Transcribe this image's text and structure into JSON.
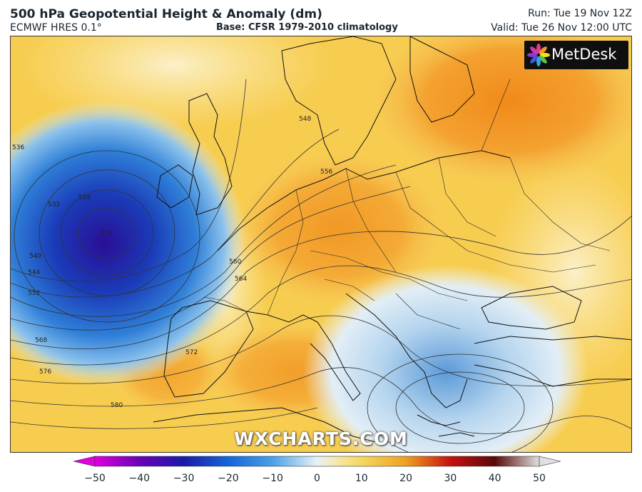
{
  "header": {
    "title": "500 hPa Geopotential Height & Anomaly (dm)",
    "model": "ECMWF HRES 0.1°",
    "base": "Base: CFSR 1979-2010 climatology",
    "run": "Run: Tue 19 Nov 12Z",
    "valid": "Valid: Tue 26 Nov 12:00 UTC"
  },
  "logo": {
    "text": "MetDesk"
  },
  "watermark": "WXCHARTS.COM",
  "contour_labels": [
    "524",
    "528",
    "532",
    "536",
    "540",
    "544",
    "548",
    "552",
    "556",
    "560",
    "564",
    "568",
    "572",
    "576",
    "580"
  ],
  "colorbar": {
    "ticks": [
      "−50",
      "−40",
      "−30",
      "−20",
      "−10",
      "0",
      "10",
      "20",
      "30",
      "40",
      "50"
    ],
    "tick_values": [
      -50,
      -40,
      -30,
      -20,
      -10,
      0,
      10,
      20,
      30,
      40,
      50
    ],
    "colors": [
      "#e000e0",
      "#6a00b8",
      "#1a1aa8",
      "#1565d8",
      "#4aa0e8",
      "#e8f2f8",
      "#f4d860",
      "#f0a020",
      "#c81010",
      "#5a0808",
      "#e0e0e0"
    ]
  }
}
